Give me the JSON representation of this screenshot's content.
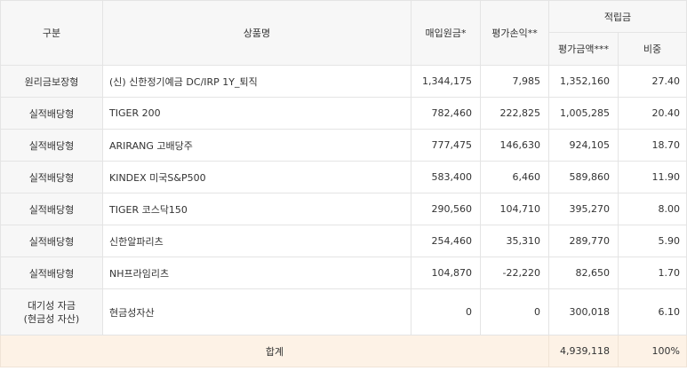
{
  "header": {
    "category": "구분",
    "product": "상품명",
    "purchase": "매입원금*",
    "gain": "평가손익**",
    "reserve": "적립금",
    "eval": "평가금액***",
    "ratio": "비중"
  },
  "rows": [
    {
      "category": "원리금보장형",
      "product": "(신) 신한정기예금 DC/IRP 1Y_퇴직",
      "purchase": "1,344,175",
      "gain": "7,985",
      "eval": "1,352,160",
      "ratio": "27.40"
    },
    {
      "category": "실적배당형",
      "product": "TIGER 200",
      "purchase": "782,460",
      "gain": "222,825",
      "eval": "1,005,285",
      "ratio": "20.40"
    },
    {
      "category": "실적배당형",
      "product": "ARIRANG 고배당주",
      "purchase": "777,475",
      "gain": "146,630",
      "eval": "924,105",
      "ratio": "18.70"
    },
    {
      "category": "실적배당형",
      "product": "KINDEX 미국S&P500",
      "purchase": "583,400",
      "gain": "6,460",
      "eval": "589,860",
      "ratio": "11.90"
    },
    {
      "category": "실적배당형",
      "product": "TIGER 코스닥150",
      "purchase": "290,560",
      "gain": "104,710",
      "eval": "395,270",
      "ratio": "8.00"
    },
    {
      "category": "실적배당형",
      "product": "신한알파리츠",
      "purchase": "254,460",
      "gain": "35,310",
      "eval": "289,770",
      "ratio": "5.90"
    },
    {
      "category": "실적배당형",
      "product": "NH프라임리츠",
      "purchase": "104,870",
      "gain": "-22,220",
      "eval": "82,650",
      "ratio": "1.70"
    },
    {
      "category_line1": "대기성 자금",
      "category_line2": "(현금성 자산)",
      "product": "현금성자산",
      "purchase": "0",
      "gain": "0",
      "eval": "300,018",
      "ratio": "6.10"
    }
  ],
  "total": {
    "label": "합계",
    "eval": "4,939,118",
    "ratio": "100%"
  }
}
